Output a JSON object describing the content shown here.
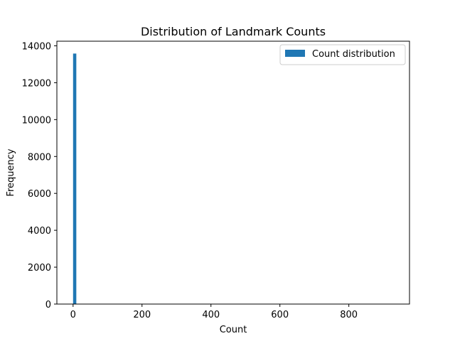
{
  "chart_data": {
    "type": "bar",
    "title": "Distribution of Landmark Counts",
    "xlabel": "Count",
    "ylabel": "Frequency",
    "xlim": [
      -47,
      976
    ],
    "ylim": [
      0,
      14250
    ],
    "x_ticks": [
      0,
      200,
      400,
      600,
      800
    ],
    "y_ticks": [
      0,
      2000,
      4000,
      6000,
      8000,
      10000,
      12000,
      14000
    ],
    "bins": [
      {
        "x0": 0,
        "x1": 9.4,
        "value": 13580
      }
    ],
    "series": [
      {
        "name": "Count distribution",
        "color": "#1f77b4"
      }
    ],
    "legend_position": "top-right",
    "grid": false
  }
}
